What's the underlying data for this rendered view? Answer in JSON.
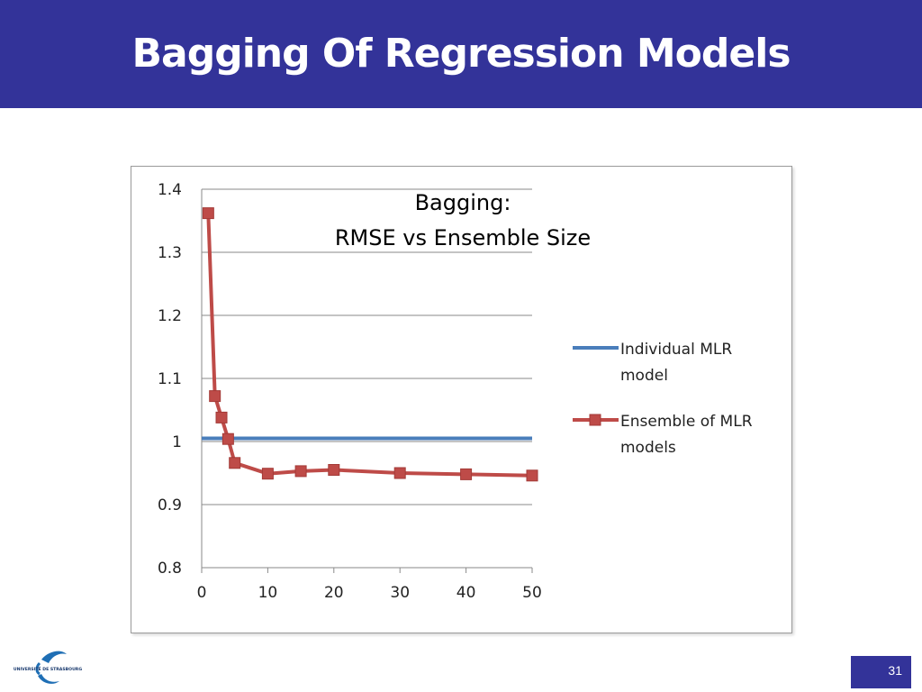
{
  "slide": {
    "title": "Bagging Of Regression Models",
    "page_number": "31",
    "colors": {
      "title_bar": "#333399",
      "title_text": "#ffffff",
      "page_box": "#333399"
    }
  },
  "logo": {
    "text": "UNIVERSITÉ DE STRASBOURG",
    "icon": "university-of-strasbourg-logo"
  },
  "chart_data": {
    "type": "line",
    "title_lines": [
      "Bagging:",
      "RMSE vs Ensemble Size"
    ],
    "xlabel": "",
    "ylabel": "",
    "xlim": [
      0,
      50
    ],
    "ylim": [
      0.8,
      1.4
    ],
    "x_ticks": [
      "0",
      "10",
      "20",
      "30",
      "40",
      "50"
    ],
    "y_ticks": [
      "0.8",
      "0.9",
      "1",
      "1.1",
      "1.2",
      "1.3",
      "1.4"
    ],
    "grid": "horizontal",
    "legend_position": "right",
    "series": [
      {
        "name_lines": [
          "Individual MLR",
          "model"
        ],
        "color": "#4a7ebb",
        "marker": "none",
        "x": [
          0,
          50
        ],
        "y": [
          1.005,
          1.005
        ]
      },
      {
        "name_lines": [
          "Ensemble of MLR",
          "models"
        ],
        "color": "#be4b48",
        "marker": "square",
        "x": [
          1,
          2,
          3,
          4,
          5,
          10,
          15,
          20,
          30,
          40,
          50
        ],
        "y": [
          1.362,
          1.072,
          1.038,
          1.004,
          0.966,
          0.949,
          0.953,
          0.955,
          0.95,
          0.948,
          0.946
        ]
      }
    ]
  }
}
